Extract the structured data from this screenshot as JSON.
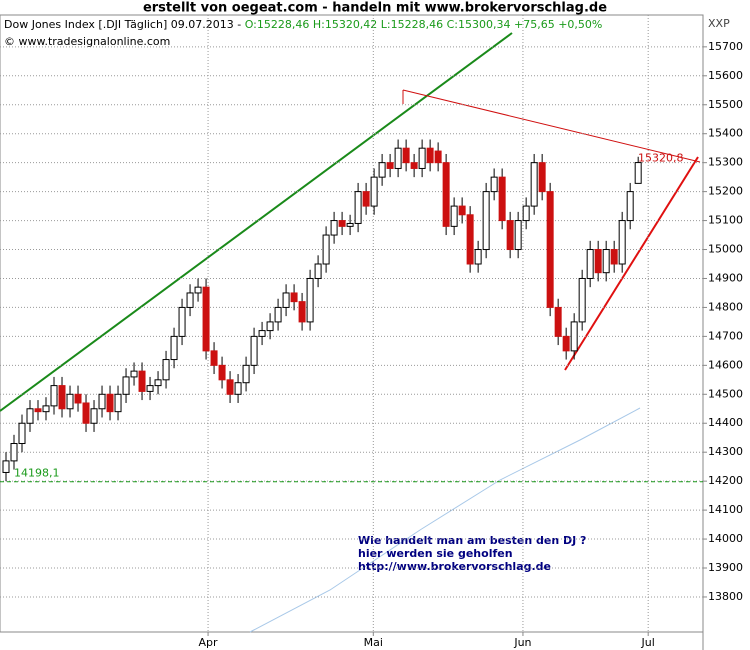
{
  "chart_data": {
    "type": "candlestick",
    "title": "erstellt von oegeat.com  - handeln mit  www.brokervorschlag.de",
    "subtitle": "Dow Jones Index [.DJI  Täglich] 09.07.2013 - ",
    "quote": "O:15228,46 H:15320,42 L:15228,46 C:15300,34 +75,65 +0,50%",
    "source": "© www.tradesignalonline.com",
    "axis_code": "XXP",
    "annotation_lines": [
      "Wie handelt man am besten  den DJ ?",
      "hier werden sie geholfen",
      "http://www.brokervorschlag.de"
    ],
    "hline": {
      "value": 14198.1,
      "label": "14198,1"
    },
    "peak_label": {
      "value": 15320.8,
      "label": "15320,8"
    },
    "up_color": "#ffffff",
    "down_color": "#cc1010",
    "categories": [
      null,
      null,
      null,
      null,
      null,
      null,
      null,
      null,
      null,
      null,
      null,
      null,
      null,
      null,
      null,
      null,
      null,
      null,
      null,
      null,
      null,
      null,
      null,
      null,
      null,
      null,
      null,
      null,
      null,
      null,
      null,
      null,
      null,
      null,
      null,
      null,
      null,
      null,
      null,
      null,
      null,
      null,
      null,
      null,
      null,
      null,
      null,
      null,
      null,
      null,
      null,
      null,
      null,
      null,
      null,
      null,
      null,
      null,
      null,
      null,
      null,
      null,
      null,
      null,
      null,
      null,
      null,
      null,
      null,
      null,
      null,
      null,
      null,
      null,
      null,
      null,
      null,
      null,
      null,
      null
    ],
    "open": [
      14230,
      14270,
      14330,
      14400,
      14450,
      14440,
      14460,
      14530,
      14450,
      14500,
      14470,
      14400,
      14450,
      14500,
      14440,
      14500,
      14560,
      14580,
      14510,
      14530,
      14550,
      14620,
      14700,
      14800,
      14850,
      14870,
      14650,
      14600,
      14550,
      14500,
      14540,
      14600,
      14700,
      14720,
      14750,
      14800,
      14850,
      14820,
      14750,
      14900,
      14950,
      15050,
      15100,
      15080,
      15090,
      15200,
      15150,
      15250,
      15300,
      15280,
      15350,
      15300,
      15280,
      15350,
      15340,
      15300,
      15080,
      15150,
      15120,
      14950,
      15000,
      15200,
      15250,
      15100,
      15000,
      15100,
      15150,
      15300,
      15200,
      14800,
      14700,
      14650,
      14750,
      14900,
      15000,
      14920,
      15000,
      14950,
      15100,
      15228.46
    ],
    "high": [
      14300,
      14360,
      14430,
      14480,
      14480,
      14490,
      14560,
      14560,
      14530,
      14530,
      14500,
      14480,
      14530,
      14530,
      14530,
      14590,
      14610,
      14610,
      14560,
      14580,
      14650,
      14730,
      14830,
      14880,
      14900,
      14900,
      14680,
      14630,
      14580,
      14570,
      14630,
      14730,
      14750,
      14780,
      14830,
      14880,
      14880,
      14850,
      14930,
      14980,
      15080,
      15130,
      15130,
      15120,
      15230,
      15230,
      15280,
      15330,
      15330,
      15380,
      15380,
      15330,
      15380,
      15380,
      15370,
      15330,
      15180,
      15180,
      15150,
      15030,
      15230,
      15280,
      15280,
      15130,
      15130,
      15180,
      15330,
      15330,
      15230,
      14830,
      14730,
      14780,
      14930,
      15030,
      15030,
      15030,
      15030,
      15130,
      15230,
      15320.42
    ],
    "low": [
      14200,
      14240,
      14300,
      14370,
      14410,
      14410,
      14430,
      14420,
      14420,
      14440,
      14370,
      14370,
      14420,
      14410,
      14410,
      14470,
      14530,
      14480,
      14480,
      14500,
      14520,
      14590,
      14670,
      14770,
      14820,
      14620,
      14570,
      14520,
      14470,
      14470,
      14510,
      14570,
      14670,
      14690,
      14720,
      14770,
      14790,
      14720,
      14720,
      14870,
      14920,
      15020,
      15050,
      15050,
      15060,
      15120,
      15120,
      15220,
      15250,
      15250,
      15270,
      15250,
      15250,
      15270,
      15270,
      15050,
      15050,
      15090,
      14920,
      14920,
      14970,
      15170,
      15070,
      14970,
      14970,
      15070,
      15120,
      15170,
      14770,
      14670,
      14620,
      14620,
      14720,
      14870,
      14890,
      14890,
      14920,
      14920,
      15070,
      15228.46
    ],
    "close": [
      14270,
      14330,
      14400,
      14450,
      14440,
      14460,
      14530,
      14450,
      14500,
      14470,
      14400,
      14450,
      14500,
      14440,
      14500,
      14560,
      14580,
      14510,
      14530,
      14550,
      14620,
      14700,
      14800,
      14850,
      14870,
      14650,
      14600,
      14550,
      14500,
      14540,
      14600,
      14700,
      14720,
      14750,
      14800,
      14850,
      14820,
      14750,
      14900,
      14950,
      15050,
      15100,
      15080,
      15090,
      15200,
      15150,
      15250,
      15300,
      15280,
      15350,
      15300,
      15280,
      15350,
      15300,
      15300,
      15080,
      15150,
      15120,
      14950,
      15000,
      15200,
      15250,
      15100,
      15000,
      15100,
      15150,
      15300,
      15200,
      14800,
      14700,
      14650,
      14750,
      14900,
      15000,
      14920,
      15000,
      14950,
      15100,
      15200,
      15300.34
    ],
    "xlim": [
      -0.75,
      87.1
    ],
    "xticks": [
      {
        "value": 25.25,
        "label": "Apr"
      },
      {
        "value": 45.9,
        "label": "Mai"
      },
      {
        "value": 64.6,
        "label": "Jun"
      },
      {
        "value": 80.25,
        "label": "Jul"
      }
    ],
    "ylim": [
      13679,
      15810
    ],
    "yticks": [
      13800,
      13900,
      14000,
      14100,
      14200,
      14300,
      14400,
      14500,
      14600,
      14700,
      14800,
      14900,
      15000,
      15100,
      15200,
      15300,
      15400,
      15500,
      15600,
      15700
    ],
    "grid": true
  }
}
